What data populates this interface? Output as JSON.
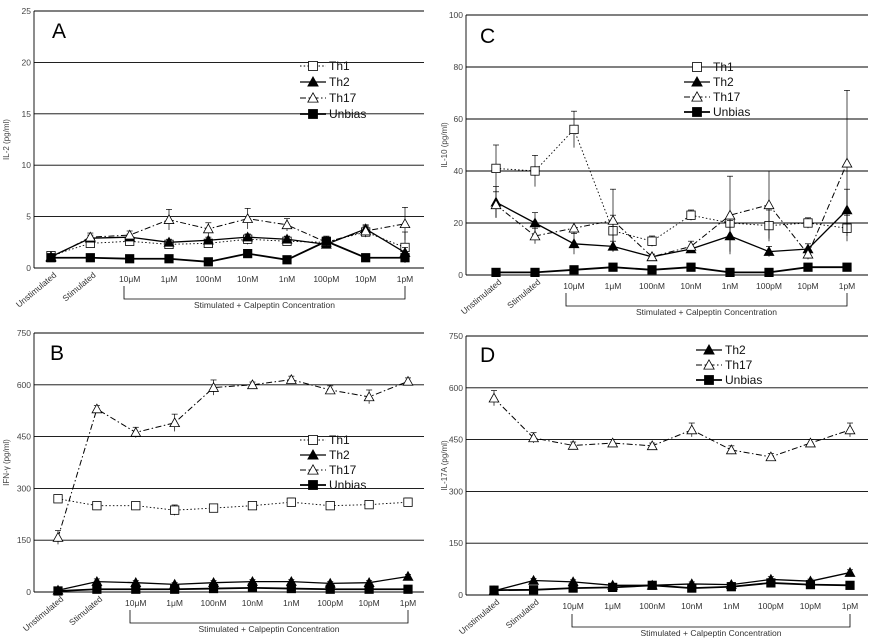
{
  "figure": {
    "bracket_label": "Stimulated + Calpeptin Concentration"
  },
  "chart_data": [
    {
      "id": "A",
      "type": "line",
      "panel_label": "A",
      "ylabel": "IL-2 (pg/ml)",
      "ylim": [
        0,
        25
      ],
      "yticks": [
        0,
        5,
        10,
        15,
        20,
        25
      ],
      "categories": [
        "Unstimulated",
        "Stimulated",
        "10μM",
        "1μM",
        "100nM",
        "10nM",
        "1nM",
        "100pM",
        "10pM",
        "1pM"
      ],
      "series": [
        {
          "name": "Th1",
          "style": "th1",
          "values": [
            1.2,
            2.4,
            2.6,
            2.3,
            2.4,
            2.8,
            2.6,
            2.5,
            3.5,
            2.0
          ],
          "err": [
            0.2,
            0.4,
            0.4,
            0.3,
            0.4,
            0.5,
            0.4,
            0.4,
            0.5,
            1.5
          ]
        },
        {
          "name": "Th2",
          "style": "th2",
          "values": [
            1.1,
            2.9,
            3.0,
            2.5,
            2.7,
            3.0,
            2.8,
            2.3,
            3.8,
            1.5
          ],
          "err": [
            0.2,
            0.3,
            0.3,
            0.3,
            0.3,
            0.3,
            0.3,
            0.4,
            0.4,
            0.5
          ]
        },
        {
          "name": "Th17",
          "style": "th17",
          "values": [
            1.0,
            3.0,
            3.2,
            4.7,
            3.8,
            4.8,
            4.2,
            2.5,
            3.6,
            4.3
          ],
          "err": [
            0.2,
            0.4,
            0.4,
            1.0,
            0.6,
            1.0,
            0.6,
            0.5,
            0.5,
            1.6
          ]
        },
        {
          "name": "Unbias",
          "style": "unbias",
          "values": [
            1.0,
            1.0,
            0.9,
            0.9,
            0.6,
            1.4,
            0.8,
            2.6,
            1.0,
            1.0
          ],
          "err": [
            0.1,
            0.1,
            0.1,
            0.1,
            0.1,
            0.3,
            0.1,
            0.5,
            0.1,
            0.1
          ]
        }
      ],
      "legend": [
        "Th1",
        "Th2",
        "Th17",
        "Unbias"
      ],
      "legend_position": "top-right"
    },
    {
      "id": "C",
      "type": "line",
      "panel_label": "C",
      "ylabel": "IL-10 (pg/ml)",
      "ylim": [
        0,
        100
      ],
      "yticks": [
        0,
        20,
        40,
        60,
        80,
        100
      ],
      "categories": [
        "Unstimulated",
        "Stimulated",
        "10μM",
        "1μM",
        "100nM",
        "10nM",
        "1nM",
        "100pM",
        "10pM",
        "1pM"
      ],
      "series": [
        {
          "name": "Th1",
          "style": "th1",
          "values": [
            41,
            40,
            56,
            17,
            13,
            23,
            20,
            19,
            20,
            18
          ],
          "err": [
            9,
            6,
            7,
            6,
            2,
            2,
            3,
            6,
            2,
            5
          ]
        },
        {
          "name": "Th2",
          "style": "th2",
          "values": [
            28,
            20,
            12,
            11,
            7,
            10,
            15,
            9,
            10,
            25
          ],
          "err": [
            6,
            4,
            4,
            2,
            1,
            1,
            6,
            2,
            2,
            8
          ]
        },
        {
          "name": "Th17",
          "style": "th17",
          "values": [
            27,
            15,
            18,
            21,
            7,
            11,
            23,
            27,
            8,
            43
          ],
          "err": [
            5,
            3,
            2,
            12,
            1,
            2,
            15,
            13,
            2,
            28
          ]
        },
        {
          "name": "Unbias",
          "style": "unbias",
          "values": [
            1,
            1,
            2,
            3,
            2,
            3,
            1,
            1,
            3,
            3
          ],
          "err": [
            0.5,
            0.5,
            0.5,
            0.5,
            0.5,
            0.5,
            0.5,
            0.5,
            0.5,
            0.5
          ]
        }
      ],
      "legend": [
        "Th1",
        "Th2",
        "Th17",
        "Unbias"
      ],
      "legend_position": "top-right"
    },
    {
      "id": "B",
      "type": "line",
      "panel_label": "B",
      "ylabel": "IFN-γ (pg/ml)",
      "ylim": [
        0,
        750
      ],
      "yticks": [
        0,
        150,
        300,
        450,
        600,
        750
      ],
      "categories": [
        "Unstimulated",
        "Stimulated",
        "10μM",
        "1μM",
        "100nM",
        "10nM",
        "1nM",
        "100pM",
        "10pM",
        "1pM"
      ],
      "series": [
        {
          "name": "Th1",
          "style": "th1",
          "values": [
            270,
            250,
            250,
            237,
            243,
            250,
            260,
            250,
            253,
            260
          ],
          "err": [
            8,
            8,
            8,
            15,
            10,
            8,
            12,
            10,
            10,
            12
          ]
        },
        {
          "name": "Th2",
          "style": "th2",
          "values": [
            5,
            30,
            27,
            22,
            27,
            30,
            30,
            25,
            27,
            45
          ],
          "err": [
            2,
            8,
            6,
            5,
            6,
            6,
            6,
            5,
            6,
            6
          ]
        },
        {
          "name": "Th17",
          "style": "th17",
          "values": [
            158,
            530,
            462,
            490,
            592,
            600,
            615,
            585,
            565,
            610
          ],
          "err": [
            20,
            10,
            15,
            25,
            22,
            8,
            10,
            12,
            20,
            10
          ]
        },
        {
          "name": "Unbias",
          "style": "unbias",
          "values": [
            3,
            8,
            8,
            8,
            10,
            12,
            10,
            8,
            8,
            8
          ],
          "err": [
            1,
            2,
            2,
            2,
            2,
            2,
            2,
            2,
            2,
            2
          ]
        }
      ],
      "legend": [
        "Th1",
        "Th2",
        "Th17",
        "Unbias"
      ],
      "legend_position": "middle-right"
    },
    {
      "id": "D",
      "type": "line",
      "panel_label": "D",
      "ylabel": "IL-17A (pg/ml)",
      "ylim": [
        0,
        750
      ],
      "yticks": [
        0,
        150,
        300,
        450,
        600,
        750
      ],
      "categories": [
        "Unstimulated",
        "Stimulated",
        "10μM",
        "1μM",
        "100nM",
        "10nM",
        "1nM",
        "100pM",
        "10pM",
        "1pM"
      ],
      "series": [
        {
          "name": "Th2",
          "style": "th2",
          "values": [
            12,
            42,
            38,
            28,
            28,
            32,
            30,
            45,
            40,
            65
          ],
          "err": [
            3,
            6,
            6,
            5,
            5,
            6,
            6,
            8,
            6,
            8
          ]
        },
        {
          "name": "Th17",
          "style": "th17",
          "values": [
            570,
            455,
            433,
            440,
            432,
            478,
            420,
            400,
            440,
            478
          ],
          "err": [
            22,
            15,
            10,
            10,
            8,
            20,
            12,
            10,
            10,
            20
          ]
        },
        {
          "name": "Unbias",
          "style": "unbias",
          "values": [
            14,
            15,
            20,
            22,
            28,
            20,
            24,
            35,
            30,
            28
          ],
          "err": [
            2,
            2,
            2,
            2,
            2,
            2,
            2,
            2,
            2,
            2
          ]
        }
      ],
      "legend": [
        "Th2",
        "Th17",
        "Unbias"
      ],
      "legend_position": "top-right"
    }
  ]
}
